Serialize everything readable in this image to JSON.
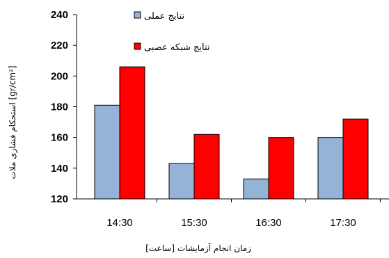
{
  "chart_data": {
    "type": "bar",
    "title": "",
    "xlabel": "زمان انجام آزمایشات [ساعت]",
    "ylabel": "استحکام فشاری ملات [gr/cm²]",
    "categories": [
      "14:30",
      "15:30",
      "16:30",
      "17:30"
    ],
    "series": [
      {
        "name": "نتایج عملی",
        "color": "#95b3d7",
        "values": [
          181,
          143,
          133,
          160
        ]
      },
      {
        "name": "نتایج شبکه عصبی",
        "color": "#ff0000",
        "values": [
          206,
          162,
          160,
          172
        ]
      }
    ],
    "ylim": [
      120,
      240
    ],
    "yticks": [
      120,
      140,
      160,
      180,
      200,
      220,
      240
    ],
    "grid": false,
    "legend_position": "top-center"
  }
}
